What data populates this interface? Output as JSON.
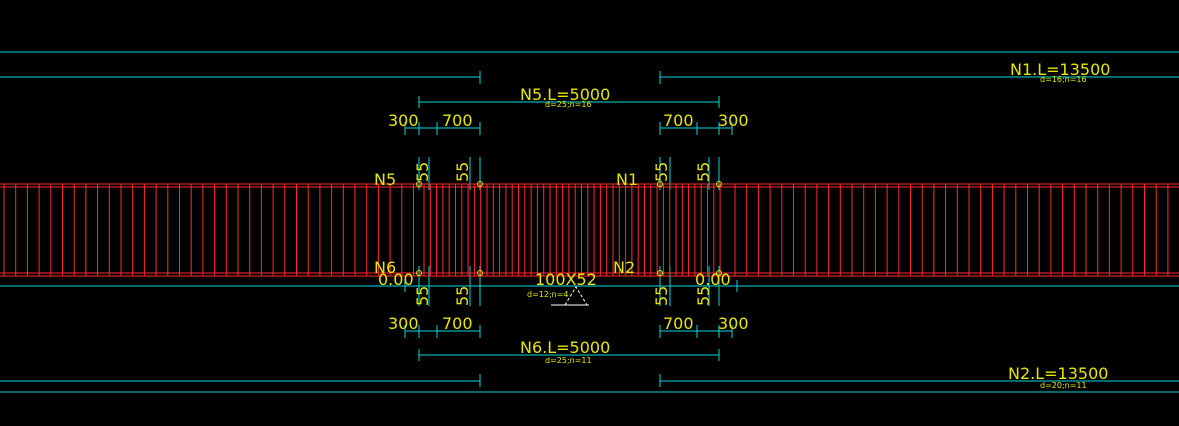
{
  "colors": {
    "dimension": "#00d7d7",
    "rebar": "#ff2a2a",
    "text": "#e6e600",
    "background": "#000000"
  },
  "bars": {
    "n1": {
      "title": "N1.L=13500",
      "spec": "d=16;n=16"
    },
    "n2": {
      "title": "N2.L=13500",
      "spec": "d=20;n=11"
    },
    "n5": {
      "title": "N5.L=5000",
      "spec": "d=25;n=16"
    },
    "n6": {
      "title": "N6.L=5000",
      "spec": "d=25;n=11"
    }
  },
  "marks": {
    "n5": "N5",
    "n1": "N1",
    "n6": "N6",
    "n2": "N2"
  },
  "dims": {
    "top_left_300": "300",
    "top_left_700": "700",
    "top_right_700": "700",
    "top_right_300": "300",
    "bot_left_300": "300",
    "bot_left_700": "700",
    "bot_right_700": "700",
    "bot_right_300": "300",
    "t55_1": "55",
    "t55_2": "55",
    "t55_3": "55",
    "t55_4": "55",
    "b55_1": "55",
    "b55_2": "55",
    "b55_3": "55",
    "b55_4": "55",
    "elev_left": "0.00",
    "elev_right": "0.00"
  },
  "stirrup": {
    "size": "100X52",
    "spec": "d=12;n=4"
  }
}
